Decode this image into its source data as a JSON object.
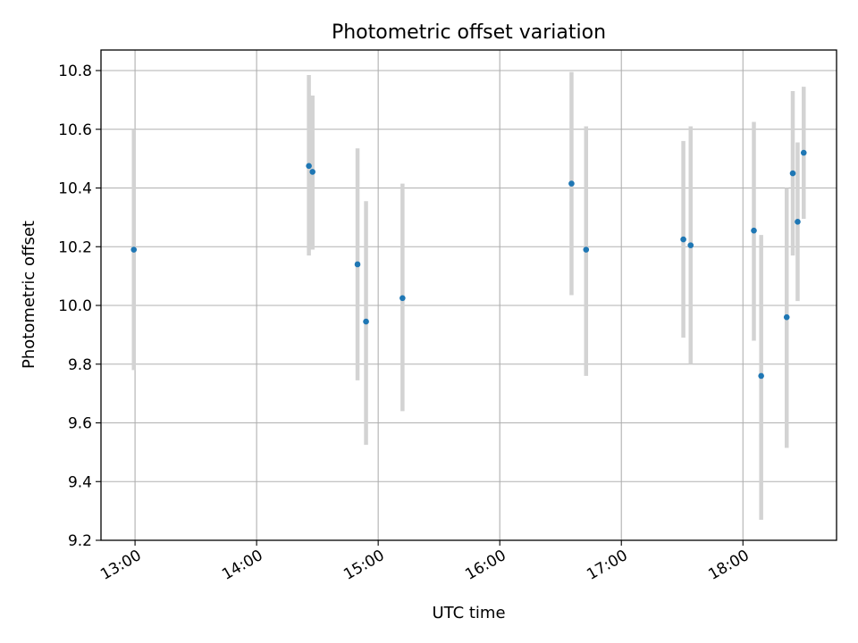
{
  "chart_data": {
    "type": "scatter",
    "title": "Photometric offset variation",
    "xlabel": "UTC time",
    "ylabel": "Photometric offset",
    "x_ticks": [
      "13:00",
      "14:00",
      "15:00",
      "16:00",
      "17:00",
      "18:00"
    ],
    "x_tick_values": [
      13.0,
      14.0,
      15.0,
      16.0,
      17.0,
      18.0
    ],
    "y_ticks": [
      "9.2",
      "9.4",
      "9.6",
      "9.8",
      "10.0",
      "10.2",
      "10.4",
      "10.6",
      "10.8"
    ],
    "y_tick_values": [
      9.2,
      9.4,
      9.6,
      9.8,
      10.0,
      10.2,
      10.4,
      10.6,
      10.8
    ],
    "xlim": [
      12.72,
      18.77
    ],
    "ylim": [
      9.2,
      10.87
    ],
    "grid": true,
    "point_color": "#1f77b4",
    "errorbar_color": "#d3d3d3",
    "points": [
      {
        "x": 12.99,
        "y": 10.19,
        "lo": 9.78,
        "hi": 10.6
      },
      {
        "x": 14.43,
        "y": 10.475,
        "lo": 10.17,
        "hi": 10.785
      },
      {
        "x": 14.46,
        "y": 10.455,
        "lo": 10.19,
        "hi": 10.715
      },
      {
        "x": 14.83,
        "y": 10.14,
        "lo": 9.745,
        "hi": 10.535
      },
      {
        "x": 14.9,
        "y": 9.945,
        "lo": 9.525,
        "hi": 10.355
      },
      {
        "x": 15.2,
        "y": 10.025,
        "lo": 9.64,
        "hi": 10.415
      },
      {
        "x": 16.59,
        "y": 10.415,
        "lo": 10.035,
        "hi": 10.795
      },
      {
        "x": 16.71,
        "y": 10.19,
        "lo": 9.76,
        "hi": 10.61
      },
      {
        "x": 17.51,
        "y": 10.225,
        "lo": 9.89,
        "hi": 10.56
      },
      {
        "x": 17.57,
        "y": 10.205,
        "lo": 9.8,
        "hi": 10.61
      },
      {
        "x": 18.09,
        "y": 10.255,
        "lo": 9.88,
        "hi": 10.625
      },
      {
        "x": 18.15,
        "y": 9.76,
        "lo": 9.27,
        "hi": 10.24
      },
      {
        "x": 18.36,
        "y": 9.96,
        "lo": 9.515,
        "hi": 10.4
      },
      {
        "x": 18.41,
        "y": 10.45,
        "lo": 10.17,
        "hi": 10.73
      },
      {
        "x": 18.45,
        "y": 10.285,
        "lo": 10.015,
        "hi": 10.555
      },
      {
        "x": 18.5,
        "y": 10.52,
        "lo": 10.295,
        "hi": 10.745
      }
    ]
  }
}
